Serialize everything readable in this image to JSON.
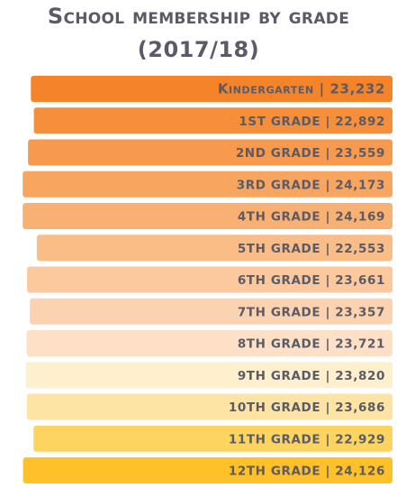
{
  "title": {
    "line1": "School membership by grade",
    "line2": "(2017/18)"
  },
  "chart_data": {
    "type": "bar",
    "orientation": "horizontal",
    "categories": [
      "Kindergarten",
      "1st grade",
      "2nd grade",
      "3rd grade",
      "4th grade",
      "5th grade",
      "6th grade",
      "7th grade",
      "8th grade",
      "9th grade",
      "10th grade",
      "11th grade",
      "12th grade"
    ],
    "category_labels": [
      "Kindergarten",
      "1ST GRADE",
      "2ND GRADE",
      "3RD GRADE",
      "4TH GRADE",
      "5TH GRADE",
      "6TH GRADE",
      "7TH GRADE",
      "8TH GRADE",
      "9TH GRADE",
      "10TH GRADE",
      "11TH GRADE",
      "12TH GRADE"
    ],
    "values": [
      23232,
      22892,
      23559,
      24173,
      24169,
      22553,
      23661,
      23357,
      23721,
      23820,
      23686,
      22929,
      24126
    ],
    "value_labels": [
      "23,232",
      "22,892",
      "23,559",
      "24,173",
      "24,169",
      "22,553",
      "23,661",
      "23,357",
      "23,721",
      "23,820",
      "23,686",
      "22,929",
      "24,126"
    ],
    "colors": [
      "#f5832a",
      "#f68f3b",
      "#f79a4d",
      "#f8a560",
      "#f9b073",
      "#fabd88",
      "#fbc99d",
      "#fcd3b0",
      "#fde0c6",
      "#fef0cd",
      "#fee4a4",
      "#fed461",
      "#fec12a"
    ],
    "label_color": "#5a5b66",
    "separator": "|"
  }
}
